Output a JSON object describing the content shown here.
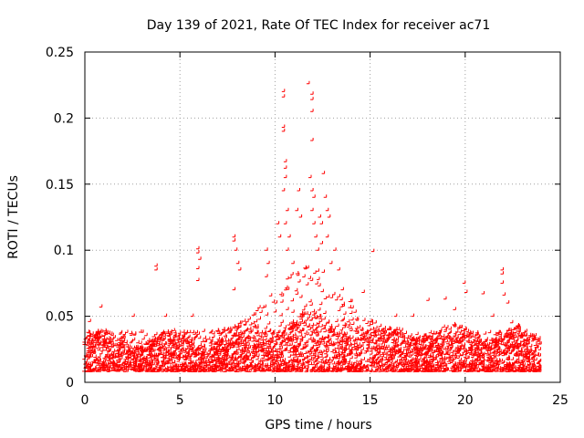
{
  "chart_data": {
    "type": "scatter",
    "title": "Day 139 of 2021, Rate Of TEC Index for receiver ac71",
    "xlabel": "GPS time / hours",
    "ylabel": "ROTI / TECUs",
    "xlim": [
      0,
      25
    ],
    "ylim": [
      0,
      0.25
    ],
    "xticks": [
      0,
      5,
      10,
      15,
      20,
      25
    ],
    "yticks": [
      0,
      0.05,
      0.1,
      0.15,
      0.2,
      0.25
    ],
    "xtick_labels": [
      "0",
      "5",
      "10",
      "15",
      "20",
      "25"
    ],
    "ytick_labels": [
      "0",
      "0.05",
      "0.1",
      "0.15",
      "0.2",
      "0.25"
    ],
    "grid": true,
    "marker": "plus",
    "color": "#ff0000",
    "series": [
      {
        "points": [
          [
            0.3,
            0.046
          ],
          [
            0.9,
            0.057
          ],
          [
            2.6,
            0.05
          ],
          [
            3.8,
            0.088
          ],
          [
            3.8,
            0.085
          ],
          [
            4.3,
            0.05
          ],
          [
            5.7,
            0.05
          ],
          [
            6.0,
            0.101
          ],
          [
            6.0,
            0.098
          ],
          [
            6.1,
            0.093
          ],
          [
            6.0,
            0.086
          ],
          [
            6.0,
            0.077
          ],
          [
            7.9,
            0.11
          ],
          [
            7.9,
            0.107
          ],
          [
            8.0,
            0.1
          ],
          [
            8.1,
            0.09
          ],
          [
            8.2,
            0.085
          ],
          [
            7.9,
            0.07
          ],
          [
            9.6,
            0.1
          ],
          [
            9.7,
            0.09
          ],
          [
            9.6,
            0.08
          ],
          [
            10.2,
            0.12
          ],
          [
            10.3,
            0.11
          ],
          [
            10.5,
            0.22
          ],
          [
            10.5,
            0.216
          ],
          [
            10.5,
            0.193
          ],
          [
            10.5,
            0.19
          ],
          [
            10.6,
            0.167
          ],
          [
            10.6,
            0.162
          ],
          [
            10.6,
            0.155
          ],
          [
            10.5,
            0.145
          ],
          [
            10.7,
            0.13
          ],
          [
            10.6,
            0.12
          ],
          [
            10.8,
            0.11
          ],
          [
            10.7,
            0.1
          ],
          [
            11.0,
            0.09
          ],
          [
            11.2,
            0.13
          ],
          [
            11.3,
            0.145
          ],
          [
            11.4,
            0.125
          ],
          [
            11.8,
            0.226
          ],
          [
            12.0,
            0.218
          ],
          [
            12.0,
            0.214
          ],
          [
            12.0,
            0.205
          ],
          [
            12.0,
            0.183
          ],
          [
            11.9,
            0.155
          ],
          [
            12.0,
            0.145
          ],
          [
            12.1,
            0.14
          ],
          [
            12.0,
            0.13
          ],
          [
            12.1,
            0.12
          ],
          [
            12.2,
            0.11
          ],
          [
            12.3,
            0.1
          ],
          [
            12.4,
            0.125
          ],
          [
            12.5,
            0.12
          ],
          [
            12.6,
            0.158
          ],
          [
            12.7,
            0.14
          ],
          [
            12.8,
            0.13
          ],
          [
            12.9,
            0.125
          ],
          [
            12.8,
            0.11
          ],
          [
            12.5,
            0.105
          ],
          [
            13.0,
            0.09
          ],
          [
            13.2,
            0.1
          ],
          [
            13.4,
            0.085
          ],
          [
            13.6,
            0.07
          ],
          [
            14.7,
            0.068
          ],
          [
            15.2,
            0.099
          ],
          [
            16.4,
            0.05
          ],
          [
            17.3,
            0.05
          ],
          [
            18.1,
            0.062
          ],
          [
            19.0,
            0.063
          ],
          [
            19.5,
            0.055
          ],
          [
            20.0,
            0.075
          ],
          [
            20.1,
            0.068
          ],
          [
            21.0,
            0.067
          ],
          [
            21.5,
            0.05
          ],
          [
            22.0,
            0.085
          ],
          [
            22.0,
            0.082
          ],
          [
            22.0,
            0.075
          ],
          [
            22.1,
            0.066
          ],
          [
            22.3,
            0.06
          ],
          [
            22.5,
            0.045
          ]
        ]
      }
    ]
  }
}
